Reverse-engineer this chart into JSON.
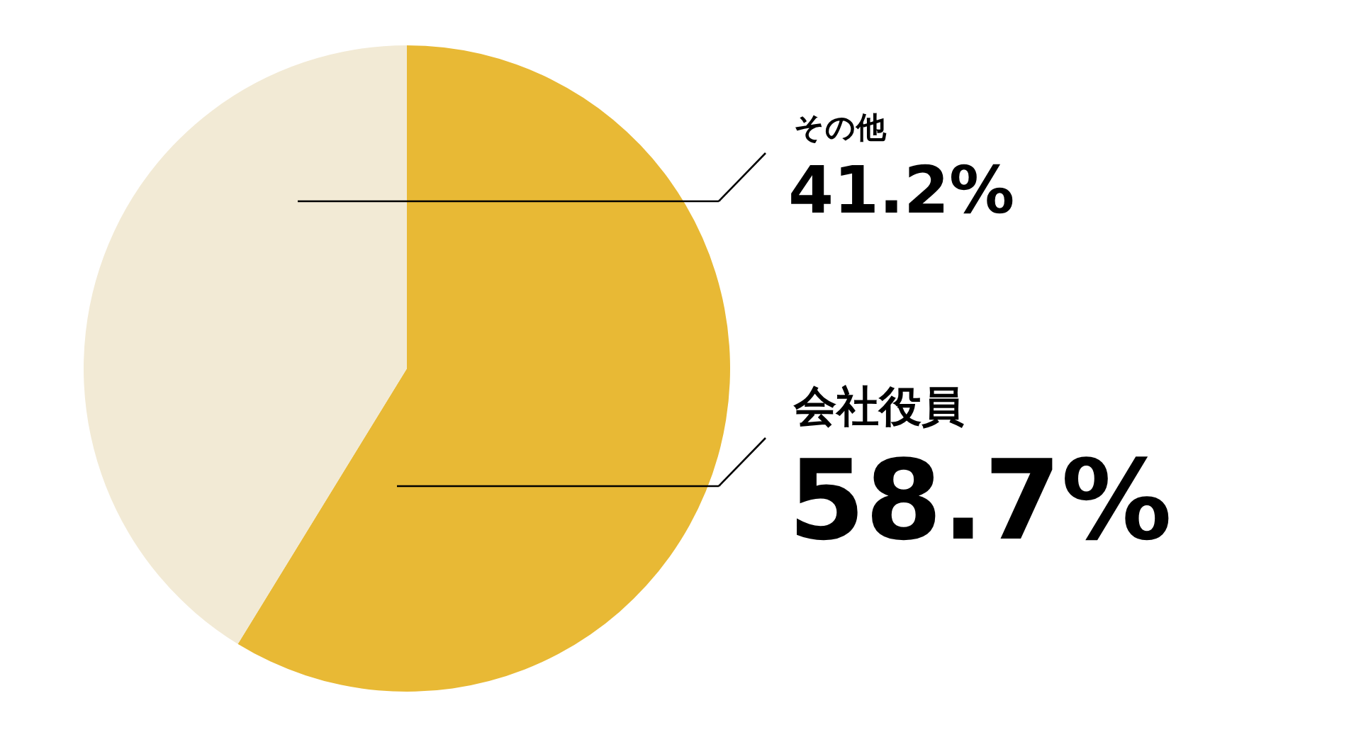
{
  "chart_data": {
    "type": "pie",
    "categories": [
      "会社役員",
      "その他"
    ],
    "values": [
      58.7,
      41.2
    ],
    "colors": [
      "#e8b935",
      "#f2ead5"
    ],
    "value_labels": [
      "58.7%",
      "41.2%"
    ]
  }
}
